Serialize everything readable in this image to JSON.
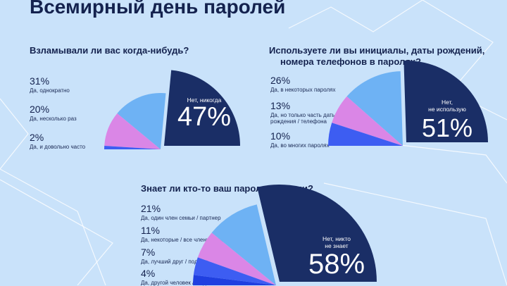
{
  "title": "Всемирный день паролей",
  "colors": {
    "background": "#c9e2fa",
    "navy": "#1a2e66",
    "light_blue": "#6eb2f4",
    "pink": "#da86e6",
    "royal_blue": "#3d5df2",
    "line": "#ffffff"
  },
  "chart_data": [
    {
      "type": "pie",
      "title": "Взламывали ли вас когда-нибудь?",
      "slices": [
        {
          "label": "Нет, никогда",
          "value": 47,
          "display": "47%",
          "color": "#1a2e66"
        },
        {
          "label": "Да, однократно",
          "value": 31,
          "display": "31%",
          "color": "#6eb2f4"
        },
        {
          "label": "Да, несколько раз",
          "value": 20,
          "display": "20%",
          "color": "#da86e6"
        },
        {
          "label": "Да, и довольно часто",
          "value": 2,
          "display": "2%",
          "color": "#3d5df2"
        }
      ]
    },
    {
      "type": "pie",
      "title": "Используете ли вы инициалы, даты рождений, номера телефонов в паролях?",
      "title_line1": "Используете ли вы инициалы, даты рождений,",
      "title_line2": "номера телефонов в паролях?",
      "slices": [
        {
          "label": "Нет, не использую",
          "label_line1": "Нет,",
          "label_line2": "не использую",
          "value": 51,
          "display": "51%",
          "color": "#1a2e66"
        },
        {
          "label": "Да, в некоторых паролях",
          "value": 26,
          "display": "26%",
          "color": "#6eb2f4"
        },
        {
          "label": "Да, но только часть даты рождения / телефона",
          "label_line1": "Да, но только часть даты",
          "label_line2": "рождения / телефона",
          "value": 13,
          "display": "13%",
          "color": "#da86e6"
        },
        {
          "label": "Да, во многих паролях",
          "value": 10,
          "display": "10%",
          "color": "#3d5df2"
        }
      ]
    },
    {
      "type": "pie",
      "title": "Знает ли кто-то ваш пароль / пароли?",
      "slices": [
        {
          "label": "Нет, никто не знает",
          "label_line1": "Нет, никто",
          "label_line2": "не знает",
          "value": 58,
          "display": "58%",
          "color": "#1a2e66"
        },
        {
          "label": "Да, один член семьи / партнер",
          "value": 21,
          "display": "21%",
          "color": "#6eb2f4"
        },
        {
          "label": "Да, некоторые / все члены семьи",
          "value": 11,
          "display": "11%",
          "color": "#da86e6"
        },
        {
          "label": "Да, лучший друг / подруга",
          "value": 7,
          "display": "7%",
          "color": "#3d5df2"
        },
        {
          "label": "Да, другой человек / люди",
          "value": 4,
          "display": "4%",
          "color": "#1f3fe0"
        }
      ]
    }
  ]
}
